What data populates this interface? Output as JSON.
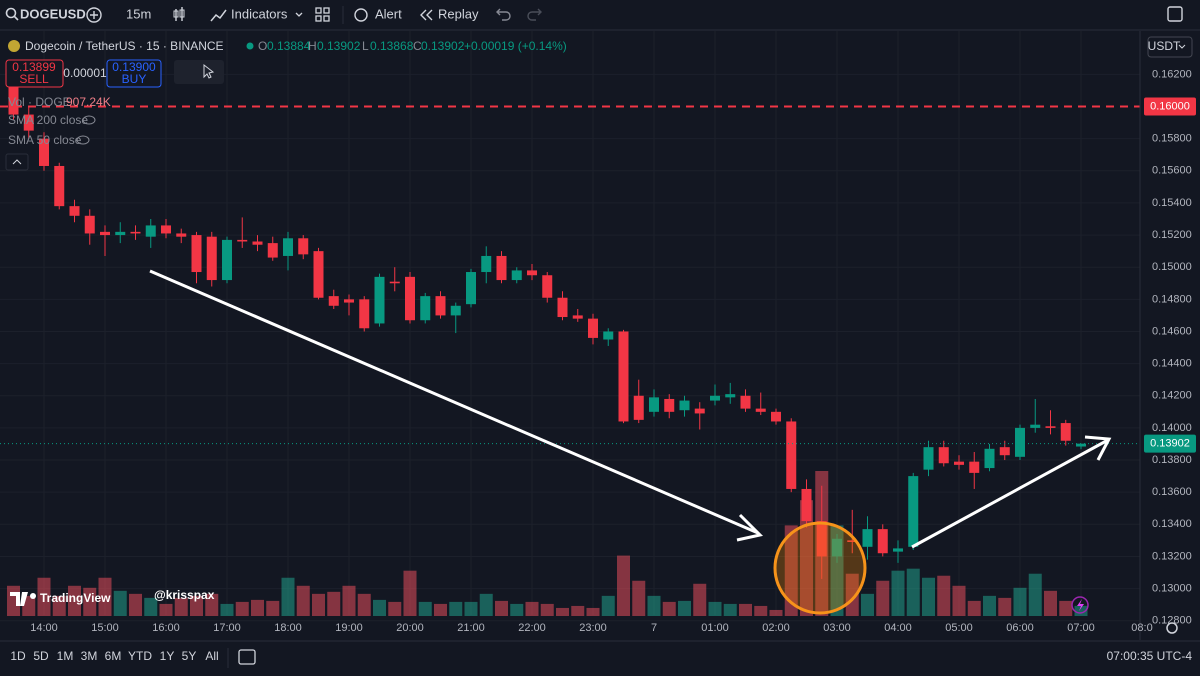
{
  "ui": {
    "toolbar": {
      "symbol": "DOGEUSD",
      "interval": "15m",
      "indicators": "Indicators",
      "alert": "Alert",
      "replay": "Replay"
    },
    "header": {
      "name": "Dogecoin / TetherUS · 15 · BINANCE",
      "o": "O",
      "h": "H",
      "l": "L",
      "c": "C",
      "change": "+0.00019 (+0.14%)"
    },
    "trade": {
      "sell_price": "0.13899",
      "sell": "SELL",
      "spread": "0.00001",
      "buy_price": "0.13900",
      "buy": "BUY"
    },
    "legend": {
      "vol_name": "Vol · DOGE",
      "vol_value": "907.24K",
      "sma200": "SMA 200 close",
      "sma50": "SMA 50 close"
    },
    "currency": "USDT",
    "watermark": "TradingView",
    "author": "@krisspax",
    "ranges": [
      "1D",
      "5D",
      "1M",
      "3M",
      "6M",
      "YTD",
      "1Y",
      "5Y",
      "All"
    ],
    "clock": "07:00:35 UTC-4"
  },
  "chart_data": {
    "type": "candlestick",
    "open": [
      0.1614,
      0.1595,
      0.158,
      0.1563,
      0.1538,
      0.1532,
      0.1522,
      0.152,
      0.1522,
      0.1519,
      0.1526,
      0.1521,
      0.152,
      0.1519,
      0.1492,
      0.1517,
      0.1516,
      0.1515,
      0.1507,
      0.1518,
      0.151,
      0.1482,
      0.148,
      0.148,
      0.1465,
      0.1491,
      0.1494,
      0.1467,
      0.1482,
      0.147,
      0.1477,
      0.1497,
      0.1507,
      0.1492,
      0.1498,
      0.1495,
      0.1481,
      0.147,
      0.1468,
      0.1455,
      0.146,
      0.142,
      0.141,
      0.1418,
      0.1411,
      0.1412,
      0.1417,
      0.1419,
      0.142,
      0.1412,
      0.141,
      0.1404,
      0.1362,
      0.1342,
      0.132,
      0.133,
      0.1326,
      0.1337,
      0.1323,
      0.1326,
      0.1374,
      0.1388,
      0.1379,
      0.1379,
      0.1375,
      0.1388,
      0.1382,
      0.14,
      0.1401,
      0.1403,
      0.13884
    ],
    "high": [
      0.1622,
      0.16,
      0.1584,
      0.1565,
      0.1542,
      0.1536,
      0.1526,
      0.1528,
      0.1526,
      0.153,
      0.153,
      0.1524,
      0.1522,
      0.1522,
      0.1519,
      0.1531,
      0.152,
      0.1519,
      0.1522,
      0.152,
      0.1512,
      0.1486,
      0.1483,
      0.1482,
      0.1496,
      0.15,
      0.1497,
      0.1484,
      0.1485,
      0.1478,
      0.1499,
      0.1513,
      0.151,
      0.15,
      0.1502,
      0.1497,
      0.1485,
      0.1474,
      0.1471,
      0.1462,
      0.1461,
      0.143,
      0.1424,
      0.1421,
      0.142,
      0.1416,
      0.1427,
      0.1428,
      0.1424,
      0.1422,
      0.1412,
      0.1406,
      0.1368,
      0.1364,
      0.1334,
      0.1349,
      0.1345,
      0.134,
      0.133,
      0.1372,
      0.1392,
      0.1392,
      0.1383,
      0.1385,
      0.139,
      0.1392,
      0.1402,
      0.1418,
      0.1411,
      0.1405,
      0.13902
    ],
    "low": [
      0.1592,
      0.158,
      0.156,
      0.1536,
      0.1528,
      0.1514,
      0.1507,
      0.1515,
      0.1517,
      0.1512,
      0.1518,
      0.1515,
      0.149,
      0.1488,
      0.149,
      0.1512,
      0.151,
      0.1504,
      0.1498,
      0.1505,
      0.148,
      0.1474,
      0.147,
      0.146,
      0.1463,
      0.1485,
      0.1465,
      0.1465,
      0.1468,
      0.1459,
      0.1475,
      0.149,
      0.149,
      0.149,
      0.1492,
      0.1478,
      0.1467,
      0.1466,
      0.1452,
      0.1451,
      0.1403,
      0.1403,
      0.1407,
      0.1406,
      0.1407,
      0.1399,
      0.1414,
      0.1415,
      0.141,
      0.1408,
      0.1402,
      0.136,
      0.1338,
      0.1306,
      0.1316,
      0.1322,
      0.1318,
      0.132,
      0.1316,
      0.1324,
      0.137,
      0.1376,
      0.1374,
      0.1362,
      0.1373,
      0.138,
      0.138,
      0.1397,
      0.1396,
      0.1389,
      0.13868
    ],
    "close": [
      0.1595,
      0.1585,
      0.1563,
      0.1538,
      0.1532,
      0.1521,
      0.152,
      0.1522,
      0.1521,
      0.1526,
      0.1521,
      0.1519,
      0.1497,
      0.1492,
      0.1517,
      0.1516,
      0.1514,
      0.1506,
      0.1518,
      0.1508,
      0.1481,
      0.1476,
      0.1478,
      0.1462,
      0.1494,
      0.149,
      0.1467,
      0.1482,
      0.147,
      0.1476,
      0.1497,
      0.1507,
      0.1492,
      0.1498,
      0.1495,
      0.1481,
      0.1469,
      0.1468,
      0.1456,
      0.146,
      0.1404,
      0.1405,
      0.1419,
      0.141,
      0.1417,
      0.1409,
      0.142,
      0.1421,
      0.1412,
      0.141,
      0.1404,
      0.1362,
      0.1342,
      0.132,
      0.1331,
      0.1329,
      0.1337,
      0.1322,
      0.1325,
      0.137,
      0.1388,
      0.1378,
      0.1377,
      0.1372,
      0.1387,
      0.1383,
      0.14,
      0.1402,
      0.14,
      0.1392,
      0.13902
    ],
    "volume": [
      2700,
      1800,
      3420,
      1800,
      2700,
      2520,
      3420,
      2250,
      1980,
      1620,
      1080,
      1620,
      1800,
      1980,
      1080,
      1260,
      1440,
      1350,
      3420,
      2700,
      1980,
      2160,
      2700,
      1980,
      1440,
      1260,
      4050,
      1260,
      1080,
      1260,
      1260,
      1980,
      1350,
      1080,
      1260,
      1080,
      720,
      900,
      720,
      1800,
      5400,
      3150,
      1800,
      1260,
      1350,
      2880,
      1260,
      1080,
      1080,
      900,
      540,
      8100,
      10350,
      12960,
      8100,
      3780,
      1980,
      3150,
      4050,
      4230,
      3420,
      3600,
      2700,
      1350,
      1800,
      1620,
      2520,
      3780,
      2250,
      1350,
      907.24
    ],
    "up_color": "#089981",
    "down_color": "#f23645",
    "volume_up_color": "rgba(34,171,148,0.5)",
    "volume_down_color": "rgba(247,82,95,0.5)",
    "ylim": [
      0.1268,
      0.1647
    ],
    "yticks": [
      {
        "value": 0.162,
        "label": "0.16200"
      },
      {
        "value": 0.158,
        "label": "0.15800"
      },
      {
        "value": 0.156,
        "label": "0.15600"
      },
      {
        "value": 0.154,
        "label": "0.15400"
      },
      {
        "value": 0.152,
        "label": "0.15200"
      },
      {
        "value": 0.15,
        "label": "0.15000"
      },
      {
        "value": 0.148,
        "label": "0.14800"
      },
      {
        "value": 0.146,
        "label": "0.14600"
      },
      {
        "value": 0.144,
        "label": "0.14400"
      },
      {
        "value": 0.142,
        "label": "0.14200"
      },
      {
        "value": 0.14,
        "label": "0.14000"
      },
      {
        "value": 0.138,
        "label": "0.13800"
      },
      {
        "value": 0.136,
        "label": "0.13600"
      },
      {
        "value": 0.134,
        "label": "0.13400"
      },
      {
        "value": 0.132,
        "label": "0.13200"
      },
      {
        "value": 0.13,
        "label": "0.13000"
      },
      {
        "value": 0.128,
        "label": "0.12800"
      }
    ],
    "xticks": [
      "14:00",
      "15:00",
      "16:00",
      "17:00",
      "18:00",
      "19:00",
      "20:00",
      "21:00",
      "22:00",
      "23:00",
      "7",
      "01:00",
      "02:00",
      "03:00",
      "04:00",
      "05:00",
      "06:00",
      "07:00",
      "08:0"
    ],
    "alert_line": {
      "value": 0.16,
      "label": "0.16000",
      "color": "#f23645"
    },
    "last_price": {
      "value": 0.13902,
      "label": "0.13902",
      "color": "#089981"
    },
    "grid": true
  }
}
